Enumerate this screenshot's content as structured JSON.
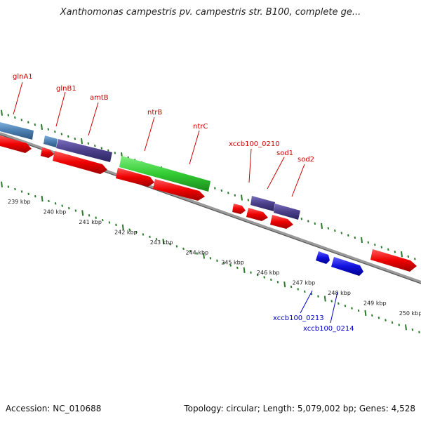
{
  "title": "Xanthomonas campestris pv. campestris str. B100, complete ge...",
  "accession": "Accession: NC_010688",
  "summary": "Topology: circular; Length: 5,079,002 bp; Genes: 4,528",
  "colors": {
    "label_red": "#cc0000",
    "label_blue": "#0000cc",
    "tick_green": "#2a7a2a",
    "backbone": "#777777",
    "gene_red": "#ee0000",
    "gene_purple": "#4b3f8a",
    "gene_steel": "#4a7db0",
    "gene_green": "#33cc33",
    "gene_blue": "#1010dd"
  },
  "scale_labels": [
    "239 kbp",
    "240 kbp",
    "241 kbp",
    "242 kbp",
    "243 kbp",
    "244 kbp",
    "245 kbp",
    "246 kbp",
    "247 kbp",
    "248 kbp",
    "249 kbp",
    "250 kbp"
  ],
  "gene_labels_top": [
    "glnA1",
    "glnB1",
    "amtB",
    "ntrB",
    "ntrC",
    "xccb100_0210",
    "sod1",
    "sod2"
  ],
  "gene_labels_bottom": [
    "xccb100_0213",
    "xccb100_0214"
  ]
}
